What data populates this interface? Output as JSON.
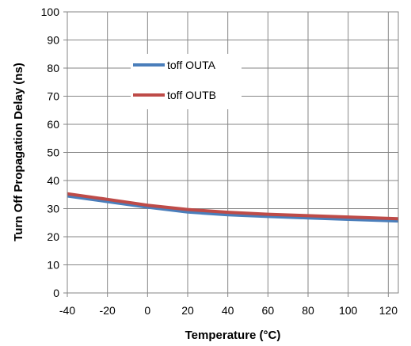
{
  "chart_data": {
    "type": "line",
    "xlabel": "Temperature (°C)",
    "ylabel": "Turn Off Propagation Delay (ns)",
    "xlim": [
      -40,
      125
    ],
    "ylim": [
      0,
      100
    ],
    "xticks": [
      -40,
      -20,
      0,
      20,
      40,
      60,
      80,
      100,
      120
    ],
    "yticks": [
      0,
      10,
      20,
      30,
      40,
      50,
      60,
      70,
      80,
      90,
      100
    ],
    "grid": true,
    "legend_position": "top-left",
    "series": [
      {
        "name": "toff OUTA",
        "color": "#4a7ebb",
        "x": [
          -40,
          -20,
          0,
          20,
          40,
          60,
          80,
          100,
          125
        ],
        "y": [
          34.5,
          32.5,
          30.5,
          28.8,
          27.8,
          27.2,
          26.7,
          26.2,
          25.6
        ]
      },
      {
        "name": "toff OUTB",
        "color": "#be4b48",
        "x": [
          -40,
          -20,
          0,
          20,
          40,
          60,
          80,
          100,
          125
        ],
        "y": [
          35.3,
          33.3,
          31.2,
          29.7,
          28.7,
          28.0,
          27.5,
          27.0,
          26.4
        ]
      }
    ]
  }
}
